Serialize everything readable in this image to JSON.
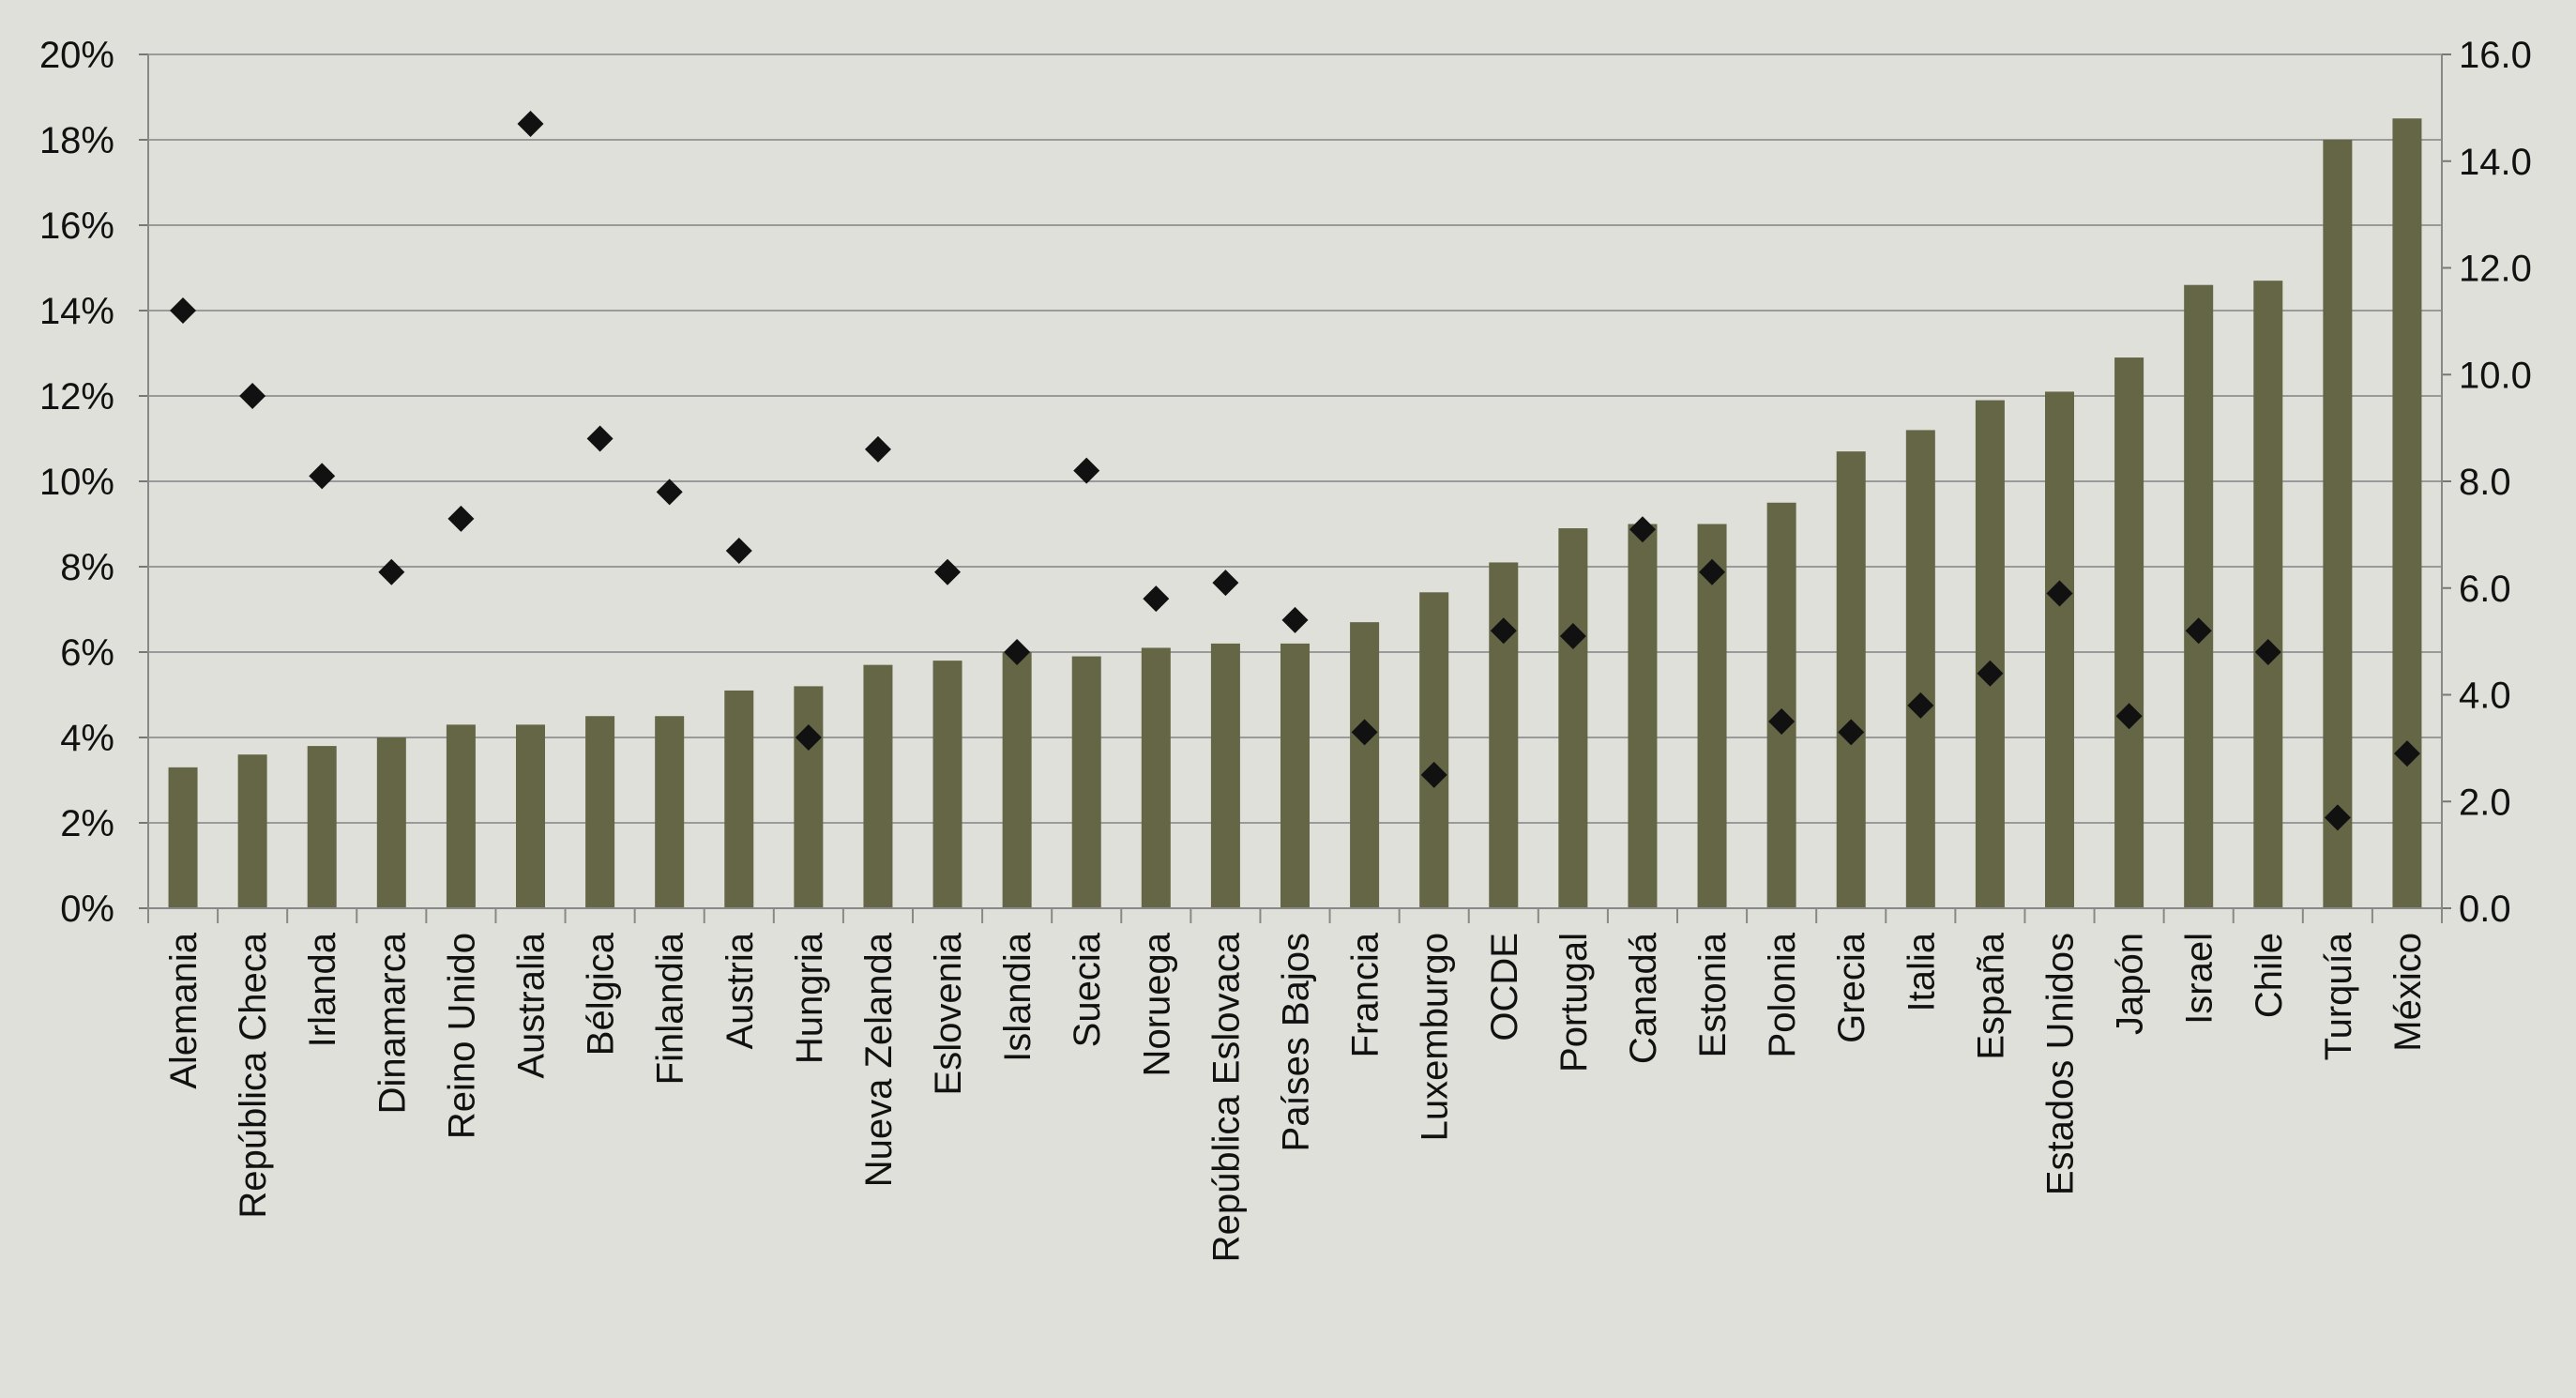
{
  "chart_data": {
    "type": "bar",
    "categories": [
      "Alemania",
      "República Checa",
      "Irlanda",
      "Dinamarca",
      "Reino Unido",
      "Australia",
      "Bélgica",
      "Finlandia",
      "Austria",
      "Hungria",
      "Nueva Zelanda",
      "Eslovenia",
      "Islandia",
      "Suecia",
      "Noruega",
      "República Eslovaca",
      "Países Bajos",
      "Francia",
      "Luxemburgo",
      "OCDE",
      "Portugal",
      "Canadá",
      "Estonia",
      "Polonia",
      "Grecia",
      "Italia",
      "España",
      "Estados Unidos",
      "Japón",
      "Israel",
      "Chile",
      "Turquía",
      "México"
    ],
    "series": [
      {
        "kind": "bar",
        "axis": "left",
        "color": "#646646",
        "values": [
          3.3,
          3.6,
          3.8,
          4.0,
          4.3,
          4.3,
          4.5,
          4.5,
          5.1,
          5.2,
          5.7,
          5.8,
          6.0,
          5.9,
          6.1,
          6.2,
          6.2,
          6.7,
          7.4,
          8.1,
          8.9,
          9.0,
          9.0,
          9.5,
          10.7,
          11.2,
          11.9,
          12.1,
          12.9,
          14.6,
          14.7,
          18.0,
          18.5
        ]
      },
      {
        "kind": "marker",
        "axis": "right",
        "marker": "diamond",
        "color": "#111111",
        "values": [
          11.2,
          9.6,
          8.1,
          6.3,
          7.3,
          14.7,
          8.8,
          7.8,
          6.7,
          3.2,
          8.6,
          6.3,
          4.8,
          8.2,
          5.8,
          6.1,
          5.4,
          3.3,
          2.5,
          5.2,
          5.1,
          7.1,
          6.3,
          3.5,
          3.3,
          3.8,
          4.4,
          5.9,
          3.6,
          5.2,
          4.8,
          1.7,
          2.9
        ]
      }
    ],
    "y_left": {
      "ylim": [
        0,
        20
      ],
      "ticks": [
        "0%",
        "2%",
        "4%",
        "6%",
        "8%",
        "10%",
        "12%",
        "14%",
        "16%",
        "18%",
        "20%"
      ]
    },
    "y_right": {
      "ylim": [
        0,
        16
      ],
      "ticks": [
        "0.0",
        "2.0",
        "4.0",
        "6.0",
        "8.0",
        "10.0",
        "12.0",
        "14.0",
        "16.0"
      ]
    },
    "grid": true,
    "gridline_color": "#9a9a9a",
    "legend": "none"
  }
}
